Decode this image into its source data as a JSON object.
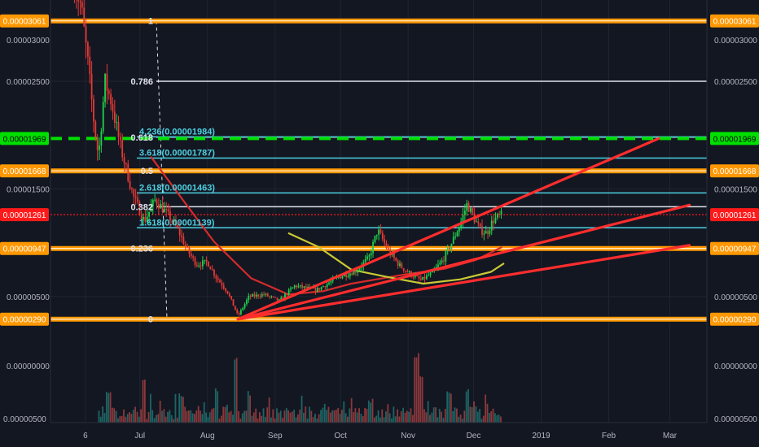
{
  "chart_data": {
    "type": "candlestick",
    "price_axis": {
      "ticks": [
        {
          "value": 2.5e-05,
          "label": "0.00002500"
        },
        {
          "value": 1.5e-05,
          "label": "0.00001500"
        },
        {
          "value": 5e-06,
          "label": "0.00000500"
        }
      ],
      "partial_top_label": "0.00003000"
    },
    "volume_axis": {
      "ticks": [
        {
          "label": "0.00000000"
        },
        {
          "label": "0.00000500"
        }
      ]
    },
    "date_ticks": [
      {
        "label": "6",
        "color": "#b2b5be"
      },
      {
        "label": "Jul",
        "color": "#b2b5be"
      },
      {
        "label": "Aug",
        "color": "#b2b5be"
      },
      {
        "label": "Sep",
        "color": "#b2b5be"
      },
      {
        "label": "Oct",
        "color": "#b2b5be"
      },
      {
        "label": "Nov",
        "color": "#b2b5be"
      },
      {
        "label": "Dec",
        "color": "#b2b5be"
      },
      {
        "label": "2019",
        "color": "#d1d4dc"
      },
      {
        "label": "Feb",
        "color": "#b2b5be"
      },
      {
        "label": "Mar",
        "color": "#b2b5be"
      }
    ],
    "horizontal_levels": [
      {
        "value": 3.061e-05,
        "label": "0.00003061",
        "color": "#ff9800",
        "badge_text_color": "#ffffff",
        "style": "solid-double"
      },
      {
        "value": 1.969e-05,
        "label": "0.00001969",
        "color": "#00e000",
        "badge_text_color": "#000000",
        "style": "dashed"
      },
      {
        "value": 1.668e-05,
        "label": "0.00001668",
        "color": "#ff9800",
        "badge_text_color": "#ffffff",
        "style": "solid-double"
      },
      {
        "value": 1.261e-05,
        "label": "0.00001261",
        "color": "#ff1a1a",
        "badge_text_color": "#ffffff",
        "style": "dotted"
      },
      {
        "value": 9.47e-06,
        "label": "0.00000947",
        "color": "#ff9800",
        "badge_text_color": "#ffffff",
        "style": "solid-double"
      },
      {
        "value": 2.9e-06,
        "label": "0.00000290",
        "color": "#ff9800",
        "badge_text_color": "#ffffff",
        "style": "solid-double"
      }
    ],
    "fib_retracement": [
      {
        "level": "1",
        "value": 3.061e-05
      },
      {
        "level": "0.786",
        "value": 2.5e-05
      },
      {
        "level": "0.618",
        "value": 1.981e-05
      },
      {
        "level": "0.5",
        "value": 1.668e-05
      },
      {
        "level": "0.382",
        "value": 1.335e-05
      },
      {
        "level": "0.236",
        "value": 9.47e-06
      },
      {
        "level": "0",
        "value": 2.9e-06
      }
    ],
    "fib_extensions": [
      {
        "label": "4.236(0.00001984)",
        "value": 1.984e-05
      },
      {
        "label": "3.618(0.00001787)",
        "value": 1.787e-05
      },
      {
        "label": "2.618(0.00001463)",
        "value": 1.463e-05
      },
      {
        "label": "1.618(0.00001139)",
        "value": 1.139e-05
      }
    ],
    "trendlines": {
      "color": "#ff2d2d",
      "origin": {
        "date": "2018-08-15",
        "value": 2.9e-06
      },
      "targets": [
        {
          "date": "2019-02-24",
          "value": 1.969e-05
        },
        {
          "date": "2019-03-10",
          "value": 1.35e-05
        },
        {
          "date": "2019-03-10",
          "value": 9.76e-06
        }
      ]
    },
    "moving_averages": [
      {
        "color": "#d62b2b",
        "points": [
          {
            "date": "2018-07-06",
            "value": 1.8e-05
          },
          {
            "date": "2018-07-21",
            "value": 1.39e-05
          },
          {
            "date": "2018-08-04",
            "value": 1.01e-05
          },
          {
            "date": "2018-08-21",
            "value": 6.7e-06
          },
          {
            "date": "2018-09-07",
            "value": 5.2e-06
          },
          {
            "date": "2018-09-23",
            "value": 5.5e-06
          },
          {
            "date": "2018-10-06",
            "value": 6.2e-06
          },
          {
            "date": "2018-10-29",
            "value": 7e-06
          },
          {
            "date": "2018-11-18",
            "value": 7.6e-06
          },
          {
            "date": "2018-12-02",
            "value": 8.4e-06
          },
          {
            "date": "2018-12-14",
            "value": 9.6e-06
          }
        ]
      },
      {
        "color": "#c9c934",
        "points": [
          {
            "date": "2018-09-07",
            "value": 1.09e-05
          },
          {
            "date": "2018-09-21",
            "value": 9.6e-06
          },
          {
            "date": "2018-10-06",
            "value": 7.5e-06
          },
          {
            "date": "2018-10-23",
            "value": 6.8e-06
          },
          {
            "date": "2018-11-08",
            "value": 6.2e-06
          },
          {
            "date": "2018-11-25",
            "value": 6.6e-06
          },
          {
            "date": "2018-12-09",
            "value": 7.3e-06
          },
          {
            "date": "2018-12-15",
            "value": 8.1e-06
          }
        ]
      }
    ],
    "price_path": [
      {
        "date": "2018-06-01",
        "value": 3.4e-05
      },
      {
        "date": "2018-06-04",
        "value": 3.2e-05
      },
      {
        "date": "2018-06-07",
        "value": 2.7e-05
      },
      {
        "date": "2018-06-10",
        "value": 2.1e-05
      },
      {
        "date": "2018-06-12",
        "value": 1.8e-05
      },
      {
        "date": "2018-06-15",
        "value": 2.5e-05
      },
      {
        "date": "2018-06-18",
        "value": 2.3e-05
      },
      {
        "date": "2018-06-22",
        "value": 1.9e-05
      },
      {
        "date": "2018-06-28",
        "value": 1.43e-05
      },
      {
        "date": "2018-07-03",
        "value": 1.2e-05
      },
      {
        "date": "2018-07-08",
        "value": 1.4e-05
      },
      {
        "date": "2018-07-13",
        "value": 1.28e-05
      },
      {
        "date": "2018-07-18",
        "value": 1.14e-05
      },
      {
        "date": "2018-07-23",
        "value": 9.2e-06
      },
      {
        "date": "2018-07-27",
        "value": 8e-06
      },
      {
        "date": "2018-08-01",
        "value": 8.2e-06
      },
      {
        "date": "2018-08-05",
        "value": 6.8e-06
      },
      {
        "date": "2018-08-10",
        "value": 5.5e-06
      },
      {
        "date": "2018-08-15",
        "value": 3.2e-06
      },
      {
        "date": "2018-08-20",
        "value": 5e-06
      },
      {
        "date": "2018-08-27",
        "value": 5.2e-06
      },
      {
        "date": "2018-09-03",
        "value": 4.6e-06
      },
      {
        "date": "2018-09-10",
        "value": 6e-06
      },
      {
        "date": "2018-09-20",
        "value": 5.6e-06
      },
      {
        "date": "2018-09-30",
        "value": 6.8e-06
      },
      {
        "date": "2018-10-08",
        "value": 7.4e-06
      },
      {
        "date": "2018-10-14",
        "value": 8.6e-06
      },
      {
        "date": "2018-10-18",
        "value": 1.12e-05
      },
      {
        "date": "2018-10-23",
        "value": 9.2e-06
      },
      {
        "date": "2018-10-28",
        "value": 7.9e-06
      },
      {
        "date": "2018-11-02",
        "value": 7.1e-06
      },
      {
        "date": "2018-11-07",
        "value": 6.5e-06
      },
      {
        "date": "2018-11-12",
        "value": 7.2e-06
      },
      {
        "date": "2018-11-17",
        "value": 8.4e-06
      },
      {
        "date": "2018-11-21",
        "value": 1e-05
      },
      {
        "date": "2018-11-25",
        "value": 1.18e-05
      },
      {
        "date": "2018-11-28",
        "value": 1.36e-05
      },
      {
        "date": "2018-12-01",
        "value": 1.24e-05
      },
      {
        "date": "2018-12-04",
        "value": 1.12e-05
      },
      {
        "date": "2018-12-07",
        "value": 1.09e-05
      },
      {
        "date": "2018-12-10",
        "value": 1.21e-05
      },
      {
        "date": "2018-12-14",
        "value": 1.26e-05
      }
    ],
    "volume_spikes": [
      {
        "date": "2018-06-05",
        "level": 0.9
      },
      {
        "date": "2018-06-16",
        "level": 0.45
      },
      {
        "date": "2018-07-03",
        "level": 0.75
      },
      {
        "date": "2018-07-20",
        "level": 0.45
      },
      {
        "date": "2018-08-05",
        "level": 0.55
      },
      {
        "date": "2018-08-14",
        "level": 0.95
      },
      {
        "date": "2018-10-15",
        "level": 0.35
      },
      {
        "date": "2018-11-05",
        "level": 1.0
      },
      {
        "date": "2018-11-07",
        "level": 0.8
      },
      {
        "date": "2018-11-20",
        "level": 0.45
      },
      {
        "date": "2018-11-28",
        "level": 0.5
      }
    ],
    "volume_colors": {
      "up": "#26a69a",
      "down": "#ef5350"
    }
  }
}
